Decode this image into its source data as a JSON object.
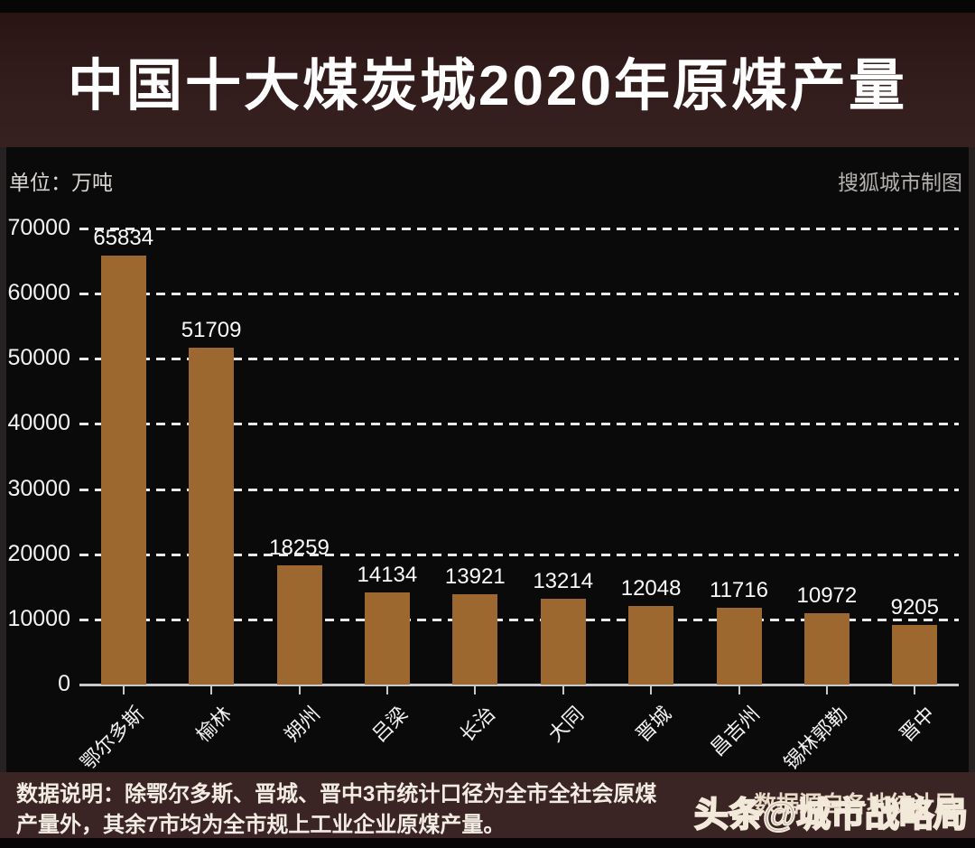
{
  "header": {
    "title": "中国十大煤炭城2020年原煤产量"
  },
  "meta": {
    "unit_label": "单位：万吨",
    "credit": "搜狐城市制图"
  },
  "chart_data": {
    "type": "bar",
    "title": "中国十大煤炭城2020年原煤产量",
    "categories": [
      "鄂尔多斯",
      "榆林",
      "朔州",
      "吕梁",
      "长治",
      "大同",
      "晋城",
      "昌吉州",
      "锡林郭勒",
      "晋中"
    ],
    "values": [
      65834,
      51709,
      18259,
      14134,
      13921,
      13214,
      12048,
      11716,
      10972,
      9205
    ],
    "value_labels": [
      "65834",
      "51709",
      "18259",
      "14134",
      "13921",
      "13214",
      "12048",
      "11716",
      "10972",
      "9205"
    ],
    "xlabel": "",
    "ylabel": "万吨",
    "ylim": [
      0,
      70000
    ],
    "yticks": [
      0,
      10000,
      20000,
      30000,
      40000,
      50000,
      60000,
      70000
    ],
    "grid": true,
    "gridline_style": "dashed",
    "legend": "none",
    "bar_color": "#9d6830",
    "background_color": "#0a0a0a",
    "gridline_color": "#e9e9e9",
    "text_color": "#f2f2f2"
  },
  "footer": {
    "note_line1": "数据说明：除鄂尔多斯、晋城、晋中3市统计口径为全市全社会原煤",
    "note_line2": "产量外，其余7市均为全市规上工业企业原煤产量。",
    "source": "数据源自各地统计局",
    "watermark": "头条@城市战略局"
  },
  "colors": {
    "title_band": "#331c1c",
    "footer_band": "#3a2424",
    "chart_bg": "#0a0a0a",
    "bar": "#9d6830",
    "accent_text": "#ffffff"
  }
}
